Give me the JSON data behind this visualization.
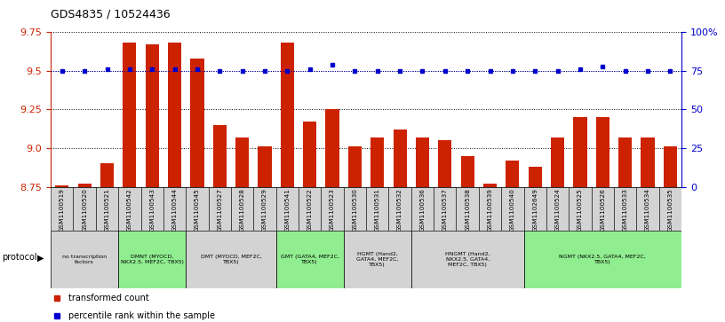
{
  "title": "GDS4835 / 10524436",
  "samples": [
    "GSM1100519",
    "GSM1100520",
    "GSM1100521",
    "GSM1100542",
    "GSM1100543",
    "GSM1100544",
    "GSM1100545",
    "GSM1100527",
    "GSM1100528",
    "GSM1100529",
    "GSM1100541",
    "GSM1100522",
    "GSM1100523",
    "GSM1100530",
    "GSM1100531",
    "GSM1100532",
    "GSM1100536",
    "GSM1100537",
    "GSM1100538",
    "GSM1100539",
    "GSM1100540",
    "GSM1102649",
    "GSM1100524",
    "GSM1100525",
    "GSM1100526",
    "GSM1100533",
    "GSM1100534",
    "GSM1100535"
  ],
  "bar_values": [
    8.76,
    8.77,
    8.9,
    9.68,
    9.67,
    9.68,
    9.58,
    9.15,
    9.07,
    9.01,
    9.68,
    9.17,
    9.25,
    9.01,
    9.07,
    9.12,
    9.07,
    9.05,
    8.95,
    8.77,
    8.92,
    8.88,
    9.07,
    9.2,
    9.2,
    9.07,
    9.07,
    9.01
  ],
  "percentile_values": [
    75,
    75,
    76,
    76,
    76,
    76,
    76,
    75,
    75,
    75,
    75,
    76,
    79,
    75,
    75,
    75,
    75,
    75,
    75,
    75,
    75,
    75,
    75,
    76,
    78,
    75,
    75,
    75
  ],
  "protocol_groups": [
    {
      "label": "no transcription\nfactors",
      "start": 0,
      "end": 2,
      "color": "#d3d3d3"
    },
    {
      "label": "DMNT (MYOCD,\nNKX2.5, MEF2C, TBX5)",
      "start": 3,
      "end": 5,
      "color": "#90ee90"
    },
    {
      "label": "DMT (MYOCD, MEF2C,\nTBX5)",
      "start": 6,
      "end": 9,
      "color": "#d3d3d3"
    },
    {
      "label": "GMT (GATA4, MEF2C,\nTBX5)",
      "start": 10,
      "end": 12,
      "color": "#90ee90"
    },
    {
      "label": "HGMT (Hand2,\nGATA4, MEF2C,\nTBX5)",
      "start": 13,
      "end": 15,
      "color": "#d3d3d3"
    },
    {
      "label": "HNGMT (Hand2,\nNKX2.5, GATA4,\nMEF2C, TBX5)",
      "start": 16,
      "end": 20,
      "color": "#d3d3d3"
    },
    {
      "label": "NGMT (NKX2.5, GATA4, MEF2C,\nTBX5)",
      "start": 21,
      "end": 27,
      "color": "#90ee90"
    }
  ],
  "ylim": [
    8.75,
    9.75
  ],
  "yticks_left": [
    8.75,
    9.0,
    9.25,
    9.5,
    9.75
  ],
  "yticks_right": [
    0,
    25,
    50,
    75,
    100
  ],
  "percentile_ylim": [
    0,
    100
  ],
  "bar_color": "#cc2200",
  "dot_color": "#0000cc",
  "dot_line_value": 75,
  "grid_color": "#000000"
}
